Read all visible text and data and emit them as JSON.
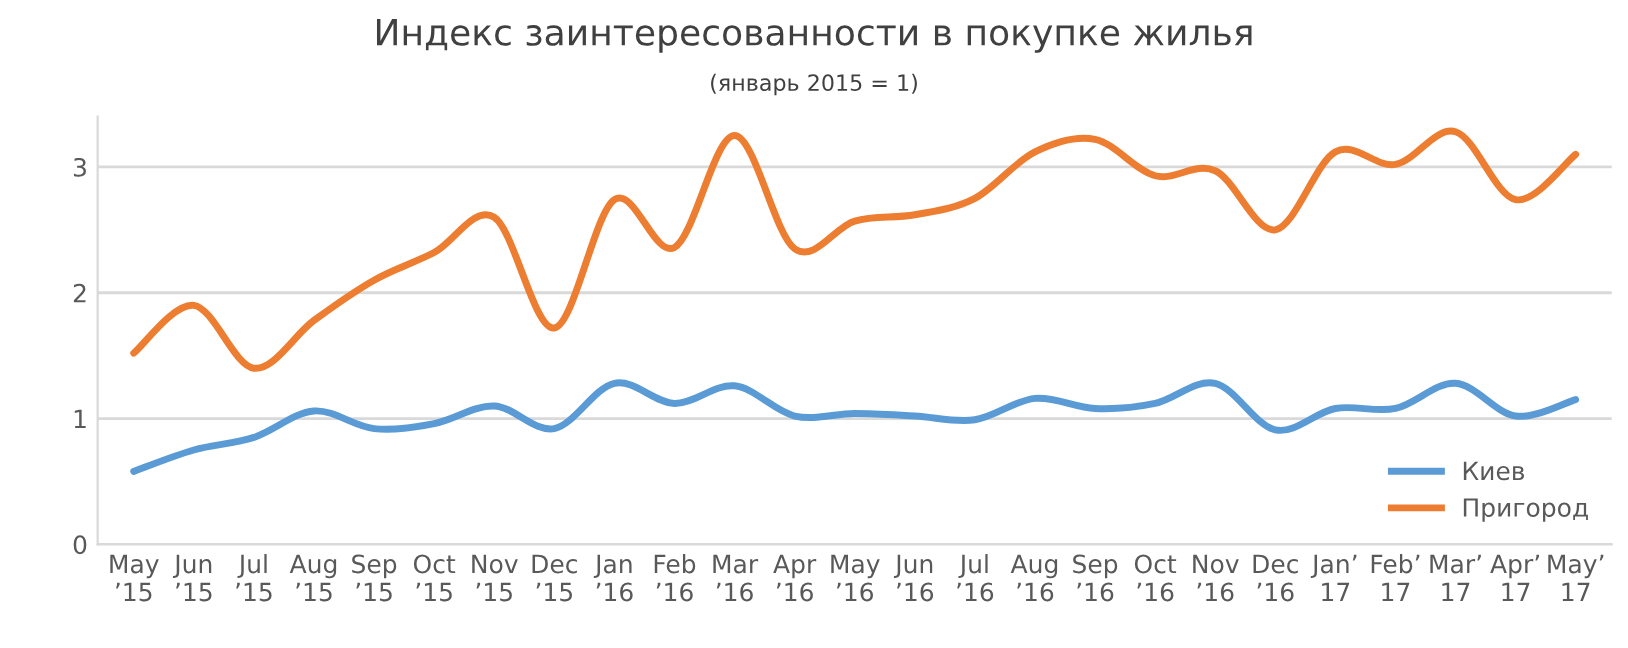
{
  "chart_data": {
    "type": "line",
    "title": "Индекс заинтересованности в покупке жилья",
    "subtitle": "(январь 2015 = 1)",
    "categories": [
      "May\n’15",
      "Jun\n’15",
      "Jul\n’15",
      "Aug\n’15",
      "Sep\n’15",
      "Oct\n’15",
      "Nov\n’15",
      "Dec\n’15",
      "Jan\n’16",
      "Feb\n’16",
      "Mar\n’16",
      "Apr\n’16",
      "May\n’16",
      "Jun\n’16",
      "Jul\n’16",
      "Aug\n’16",
      "Sep\n’16",
      "Oct\n’16",
      "Nov\n’16",
      "Dec\n’16",
      "Jan’\n17",
      "Feb’\n17",
      "Mar’\n17",
      "Apr’\n17",
      "May’\n17"
    ],
    "series": [
      {
        "name": "Киев",
        "color": "#5b9bd5",
        "values": [
          0.58,
          0.75,
          0.85,
          1.06,
          0.92,
          0.96,
          1.1,
          0.92,
          1.28,
          1.12,
          1.26,
          1.02,
          1.04,
          1.02,
          0.99,
          1.16,
          1.08,
          1.12,
          1.28,
          0.91,
          1.08,
          1.08,
          1.28,
          1.02,
          1.15
        ]
      },
      {
        "name": "Пригород",
        "color": "#ed7d31",
        "values": [
          1.52,
          1.9,
          1.4,
          1.78,
          2.1,
          2.32,
          2.6,
          1.72,
          2.74,
          2.36,
          3.25,
          2.35,
          2.57,
          2.62,
          2.75,
          3.12,
          3.22,
          2.93,
          2.97,
          2.5,
          3.12,
          3.02,
          3.28,
          2.74,
          3.1
        ]
      }
    ],
    "ylim": [
      0,
      3.4
    ],
    "yticks": [
      0,
      1,
      2,
      3
    ],
    "grid": "y",
    "legend": "bottom right",
    "marker": "none",
    "line_style": "solid"
  }
}
